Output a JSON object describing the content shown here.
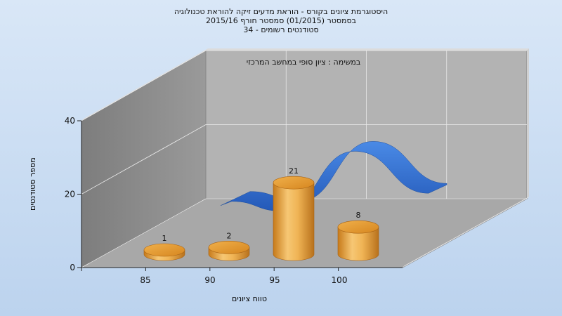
{
  "chart_data": {
    "type": "bar",
    "title_lines": [
      "היסטוגרמת ציונים בקורס - הוראת מדעים זיקה להוראת טכנולוגיה",
      "בסמסטר   (01/2015)  סמסטר חורף  2015/16",
      "סטודנטים רשומים - 34"
    ],
    "subtitle": "במשימה : ציון סופי במחשב המרכזי",
    "xlabel": "טווח ציונים",
    "ylabel": "מספר סטודנטים",
    "categories": [
      "85",
      "90",
      "95",
      "100"
    ],
    "values": [
      1,
      2,
      21,
      8
    ],
    "data_labels": [
      "1",
      "2",
      "21",
      "8"
    ],
    "yticks": [
      "0",
      "20",
      "40"
    ],
    "ylim": [
      0,
      40
    ],
    "series": [
      {
        "name": "",
        "type": "cylinder-bar",
        "values": [
          1,
          2,
          21,
          8
        ]
      },
      {
        "name": "",
        "type": "ribbon-line",
        "values": [
          5.5,
          2.5,
          21,
          8
        ]
      }
    ],
    "colors": {
      "bar": "#e8a43a",
      "ribbon": "#2e6fd0",
      "back_wall": "#b3b3b3",
      "side_wall": "#8a8a8a",
      "floor": "#a8a8a8",
      "background": "#c3d8f0"
    },
    "grid": true
  }
}
